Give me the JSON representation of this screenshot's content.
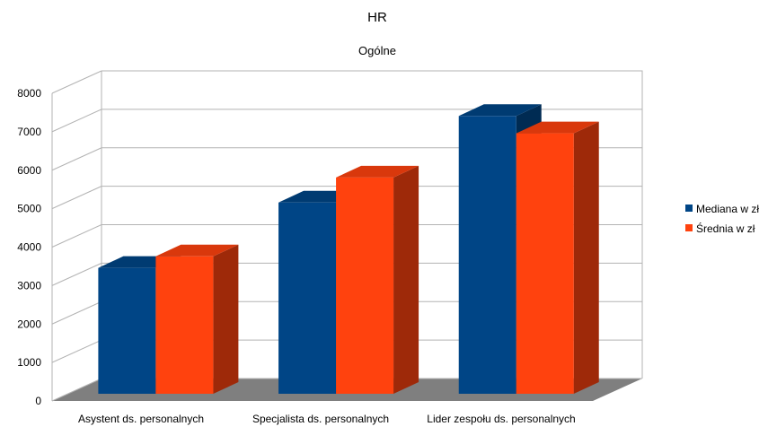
{
  "chart_data": {
    "type": "bar",
    "title": "HR",
    "subtitle": "Ogólne",
    "categories": [
      "Asystent ds. personalnych",
      "Specjalista ds. personalnych",
      "Lider zespołu ds. personalnych"
    ],
    "series": [
      {
        "name": "Mediana w zł",
        "values": [
          3600,
          5300,
          7550
        ],
        "color": "#004586"
      },
      {
        "name": "Średnia w zł",
        "values": [
          3900,
          5950,
          7100
        ],
        "color": "#ff420e"
      }
    ],
    "ylim": [
      0,
      8000
    ],
    "yticks": [
      0,
      1000,
      2000,
      3000,
      4000,
      5000,
      6000,
      7000,
      8000
    ],
    "grid": true,
    "style": "3d",
    "legend_position": "right"
  }
}
